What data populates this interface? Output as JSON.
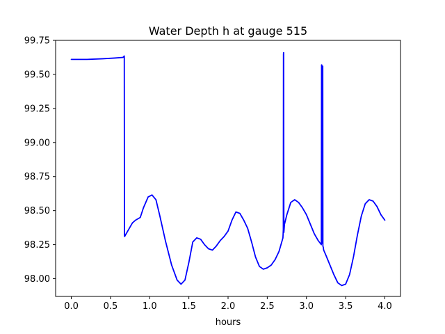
{
  "chart_data": {
    "type": "line",
    "title": "Water Depth h at gauge 515",
    "xlabel": "hours",
    "ylabel": "",
    "xlim": [
      -0.2,
      4.2
    ],
    "ylim": [
      97.87,
      99.75
    ],
    "grid": false,
    "x_ticks": [
      0.0,
      0.5,
      1.0,
      1.5,
      2.0,
      2.5,
      3.0,
      3.5,
      4.0
    ],
    "x_tick_labels": [
      "0.0",
      "0.5",
      "1.0",
      "1.5",
      "2.0",
      "2.5",
      "3.0",
      "3.5",
      "4.0"
    ],
    "y_ticks": [
      98.0,
      98.25,
      98.5,
      98.75,
      99.0,
      99.25,
      99.5,
      99.75
    ],
    "y_tick_labels": [
      "98.00",
      "98.25",
      "98.50",
      "98.75",
      "99.00",
      "99.25",
      "99.50",
      "99.75"
    ],
    "series": [
      {
        "color": "#0000ff",
        "x": [
          0.0,
          0.2,
          0.4,
          0.55,
          0.66,
          0.666,
          0.667,
          0.676,
          0.678,
          0.68,
          0.72,
          0.78,
          0.82,
          0.88,
          0.92,
          0.98,
          1.03,
          1.08,
          1.13,
          1.2,
          1.28,
          1.35,
          1.4,
          1.45,
          1.5,
          1.55,
          1.6,
          1.65,
          1.7,
          1.75,
          1.8,
          1.85,
          1.9,
          1.95,
          2.0,
          2.05,
          2.1,
          2.15,
          2.2,
          2.25,
          2.3,
          2.35,
          2.4,
          2.45,
          2.5,
          2.55,
          2.6,
          2.65,
          2.7,
          2.705,
          2.707,
          2.709,
          2.712,
          2.716,
          2.72,
          2.75,
          2.8,
          2.85,
          2.9,
          2.95,
          3.0,
          3.05,
          3.1,
          3.15,
          3.19,
          3.193,
          3.195,
          3.2,
          3.205,
          3.208,
          3.21,
          3.215,
          3.22,
          3.25,
          3.3,
          3.35,
          3.4,
          3.45,
          3.5,
          3.55,
          3.6,
          3.65,
          3.7,
          3.75,
          3.8,
          3.85,
          3.9,
          3.95,
          4.0
        ],
        "values": [
          99.61,
          99.61,
          99.615,
          99.62,
          99.625,
          99.63,
          99.63,
          99.635,
          98.32,
          98.31,
          98.35,
          98.41,
          98.43,
          98.45,
          98.52,
          98.6,
          98.615,
          98.58,
          98.46,
          98.28,
          98.1,
          97.99,
          97.96,
          97.99,
          98.12,
          98.27,
          98.3,
          98.29,
          98.25,
          98.22,
          98.21,
          98.24,
          98.28,
          98.31,
          98.35,
          98.43,
          98.49,
          98.48,
          98.43,
          98.37,
          98.27,
          98.16,
          98.09,
          98.07,
          98.08,
          98.1,
          98.14,
          98.2,
          98.3,
          98.36,
          99.65,
          99.66,
          98.34,
          98.37,
          98.4,
          98.47,
          98.56,
          98.58,
          98.56,
          98.52,
          98.47,
          98.4,
          98.33,
          98.28,
          98.25,
          99.57,
          99.57,
          98.26,
          99.56,
          99.56,
          98.24,
          98.23,
          98.21,
          98.17,
          98.1,
          98.03,
          97.97,
          97.95,
          97.96,
          98.03,
          98.16,
          98.32,
          98.46,
          98.55,
          98.58,
          98.57,
          98.53,
          98.47,
          98.43
        ]
      }
    ]
  }
}
